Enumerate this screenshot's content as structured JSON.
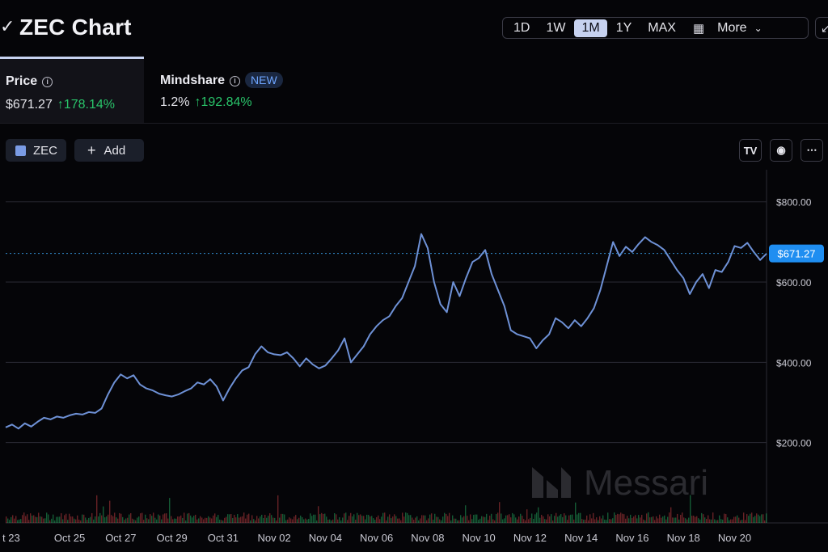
{
  "header": {
    "title": "ZEC Chart",
    "ranges": [
      "1D",
      "1W",
      "1M",
      "1Y",
      "MAX"
    ],
    "active_range": "1M",
    "more_label": "More"
  },
  "tabs": {
    "price": {
      "label": "Price",
      "value": "$671.27",
      "change": "178.14%"
    },
    "mindshare": {
      "label": "Mindshare",
      "badge": "NEW",
      "value": "1.2%",
      "change": "192.84%"
    }
  },
  "toolbar": {
    "asset_label": "ZEC",
    "add_label": "Add"
  },
  "watermark": "Messari",
  "colors": {
    "line": "#6e91d6",
    "accent": "#1f8ef1",
    "up": "#29c46a",
    "down": "#e0464a"
  },
  "chart_data": {
    "type": "line",
    "title": "",
    "series": [
      {
        "values": [
          [
            "2025-10-22T12:00",
            238
          ],
          [
            "2025-10-22T18:00",
            245
          ],
          [
            "2025-10-23T00:00",
            235
          ],
          [
            "2025-10-23T06:00",
            248
          ],
          [
            "2025-10-23T12:00",
            240
          ],
          [
            "2025-10-23T18:00",
            252
          ],
          [
            "2025-10-24T00:00",
            262
          ],
          [
            "2025-10-24T06:00",
            258
          ],
          [
            "2025-10-24T12:00",
            265
          ],
          [
            "2025-10-24T18:00",
            262
          ],
          [
            "2025-10-25T00:00",
            268
          ],
          [
            "2025-10-25T06:00",
            272
          ],
          [
            "2025-10-25T12:00",
            270
          ],
          [
            "2025-10-25T18:00",
            276
          ],
          [
            "2025-10-26T00:00",
            274
          ],
          [
            "2025-10-26T06:00",
            285
          ],
          [
            "2025-10-26T12:00",
            320
          ],
          [
            "2025-10-26T18:00",
            350
          ],
          [
            "2025-10-27T00:00",
            370
          ],
          [
            "2025-10-27T06:00",
            360
          ],
          [
            "2025-10-27T12:00",
            368
          ],
          [
            "2025-10-27T18:00",
            345
          ],
          [
            "2025-10-28T00:00",
            335
          ],
          [
            "2025-10-28T06:00",
            330
          ],
          [
            "2025-10-28T12:00",
            322
          ],
          [
            "2025-10-28T18:00",
            318
          ],
          [
            "2025-10-29T00:00",
            315
          ],
          [
            "2025-10-29T06:00",
            320
          ],
          [
            "2025-10-29T12:00",
            328
          ],
          [
            "2025-10-29T18:00",
            335
          ],
          [
            "2025-10-30T00:00",
            350
          ],
          [
            "2025-10-30T06:00",
            345
          ],
          [
            "2025-10-30T12:00",
            358
          ],
          [
            "2025-10-30T18:00",
            340
          ],
          [
            "2025-10-31T00:00",
            305
          ],
          [
            "2025-10-31T06:00",
            335
          ],
          [
            "2025-10-31T12:00",
            360
          ],
          [
            "2025-10-31T18:00",
            380
          ],
          [
            "2025-11-01T00:00",
            388
          ],
          [
            "2025-11-01T06:00",
            420
          ],
          [
            "2025-11-01T12:00",
            440
          ],
          [
            "2025-11-01T18:00",
            425
          ],
          [
            "2025-11-02T00:00",
            420
          ],
          [
            "2025-11-02T06:00",
            418
          ],
          [
            "2025-11-02T12:00",
            425
          ],
          [
            "2025-11-02T18:00",
            410
          ],
          [
            "2025-11-03T00:00",
            390
          ],
          [
            "2025-11-03T06:00",
            410
          ],
          [
            "2025-11-03T12:00",
            395
          ],
          [
            "2025-11-03T18:00",
            385
          ],
          [
            "2025-11-04T00:00",
            392
          ],
          [
            "2025-11-04T06:00",
            410
          ],
          [
            "2025-11-04T12:00",
            430
          ],
          [
            "2025-11-04T18:00",
            460
          ],
          [
            "2025-11-05T00:00",
            400
          ],
          [
            "2025-11-05T06:00",
            420
          ],
          [
            "2025-11-05T12:00",
            440
          ],
          [
            "2025-11-05T18:00",
            470
          ],
          [
            "2025-11-06T00:00",
            490
          ],
          [
            "2025-11-06T06:00",
            505
          ],
          [
            "2025-11-06T12:00",
            515
          ],
          [
            "2025-11-06T18:00",
            540
          ],
          [
            "2025-11-07T00:00",
            560
          ],
          [
            "2025-11-07T06:00",
            600
          ],
          [
            "2025-11-07T12:00",
            640
          ],
          [
            "2025-11-07T18:00",
            720
          ],
          [
            "2025-11-08T00:00",
            685
          ],
          [
            "2025-11-08T06:00",
            600
          ],
          [
            "2025-11-08T12:00",
            545
          ],
          [
            "2025-11-08T18:00",
            525
          ],
          [
            "2025-11-09T00:00",
            600
          ],
          [
            "2025-11-09T06:00",
            565
          ],
          [
            "2025-11-09T12:00",
            610
          ],
          [
            "2025-11-09T18:00",
            650
          ],
          [
            "2025-11-10T00:00",
            660
          ],
          [
            "2025-11-10T06:00",
            680
          ],
          [
            "2025-11-10T12:00",
            620
          ],
          [
            "2025-11-10T18:00",
            580
          ],
          [
            "2025-11-11T00:00",
            540
          ],
          [
            "2025-11-11T06:00",
            480
          ],
          [
            "2025-11-11T12:00",
            470
          ],
          [
            "2025-11-11T18:00",
            465
          ],
          [
            "2025-11-12T00:00",
            460
          ],
          [
            "2025-11-12T06:00",
            435
          ],
          [
            "2025-11-12T12:00",
            455
          ],
          [
            "2025-11-12T18:00",
            470
          ],
          [
            "2025-11-13T00:00",
            510
          ],
          [
            "2025-11-13T06:00",
            500
          ],
          [
            "2025-11-13T12:00",
            485
          ],
          [
            "2025-11-13T18:00",
            505
          ],
          [
            "2025-11-14T00:00",
            490
          ],
          [
            "2025-11-14T06:00",
            510
          ],
          [
            "2025-11-14T12:00",
            535
          ],
          [
            "2025-11-14T18:00",
            580
          ],
          [
            "2025-11-15T00:00",
            640
          ],
          [
            "2025-11-15T06:00",
            700
          ],
          [
            "2025-11-15T12:00",
            665
          ],
          [
            "2025-11-15T18:00",
            688
          ],
          [
            "2025-11-16T00:00",
            675
          ],
          [
            "2025-11-16T06:00",
            695
          ],
          [
            "2025-11-16T12:00",
            712
          ],
          [
            "2025-11-16T18:00",
            700
          ],
          [
            "2025-11-17T00:00",
            692
          ],
          [
            "2025-11-17T06:00",
            680
          ],
          [
            "2025-11-17T12:00",
            655
          ],
          [
            "2025-11-17T18:00",
            630
          ],
          [
            "2025-11-18T00:00",
            610
          ],
          [
            "2025-11-18T06:00",
            570
          ],
          [
            "2025-11-18T12:00",
            600
          ],
          [
            "2025-11-18T18:00",
            620
          ],
          [
            "2025-11-19T00:00",
            585
          ],
          [
            "2025-11-19T06:00",
            630
          ],
          [
            "2025-11-19T12:00",
            625
          ],
          [
            "2025-11-19T18:00",
            650
          ],
          [
            "2025-11-20T00:00",
            690
          ],
          [
            "2025-11-20T06:00",
            685
          ],
          [
            "2025-11-20T12:00",
            698
          ],
          [
            "2025-11-20T18:00",
            675
          ],
          [
            "2025-11-21T00:00",
            655
          ],
          [
            "2025-11-21T06:00",
            671
          ]
        ]
      }
    ],
    "x_tick_labels": [
      "t 23",
      "Oct 25",
      "Oct 27",
      "Oct 29",
      "Oct 31",
      "Nov 02",
      "Nov 04",
      "Nov 06",
      "Nov 08",
      "Nov 10",
      "Nov 12",
      "Nov 14",
      "Nov 16",
      "Nov 18",
      "Nov 20"
    ],
    "y_tick_labels": [
      "$200.00",
      "$400.00",
      "$600.00",
      "$800.00"
    ],
    "ylim": [
      0,
      880
    ],
    "last_price_label": "$671.27",
    "grid": true,
    "y_axis_position": "right"
  }
}
